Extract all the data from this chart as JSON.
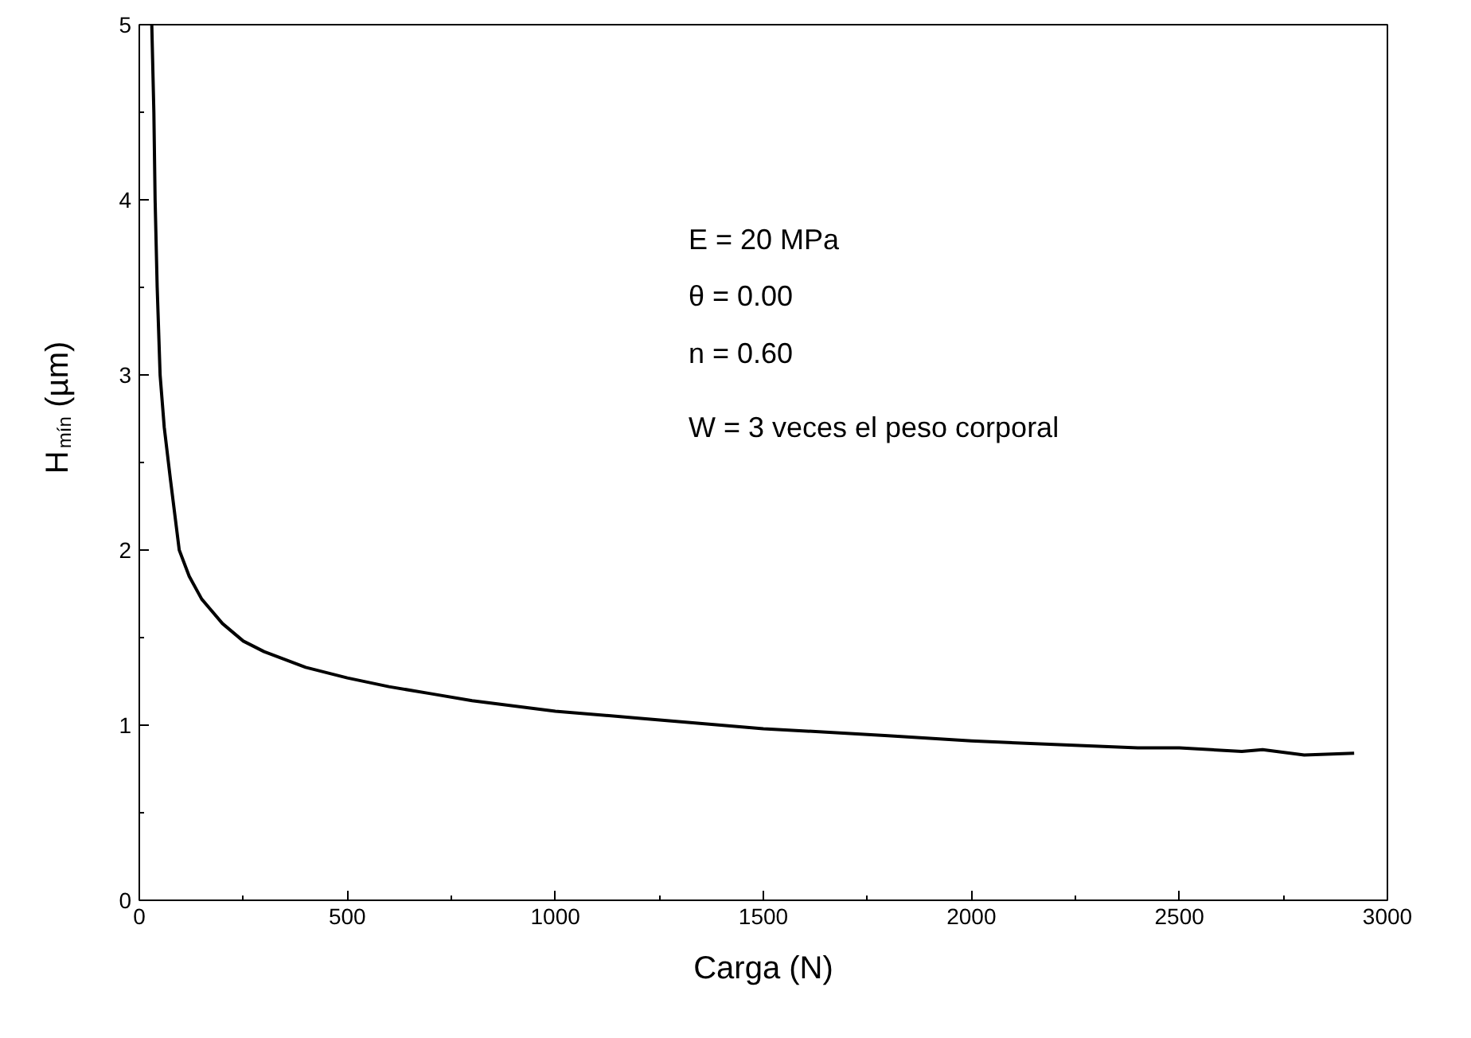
{
  "chart_data": {
    "type": "line",
    "xlabel": "Carga (N)",
    "ylabel": "H$_{mín}$ (µm)",
    "x": [
      30,
      35,
      38,
      43,
      50,
      60,
      75,
      96,
      120,
      150,
      200,
      250,
      300,
      400,
      500,
      600,
      700,
      800,
      1000,
      1200,
      1500,
      1800,
      2000,
      2200,
      2400,
      2500,
      2650,
      2700,
      2800,
      2920
    ],
    "series": [
      {
        "color": "#000000",
        "values": [
          5.0,
          4.5,
          4.0,
          3.5,
          3.0,
          2.7,
          2.4,
          2.0,
          1.85,
          1.72,
          1.58,
          1.48,
          1.42,
          1.33,
          1.27,
          1.22,
          1.18,
          1.14,
          1.08,
          1.04,
          0.98,
          0.94,
          0.91,
          0.89,
          0.87,
          0.87,
          0.85,
          0.86,
          0.83,
          0.84
        ]
      }
    ],
    "xlim": [
      0,
      3000
    ],
    "ylim": [
      0,
      5
    ],
    "xticks": [
      0,
      500,
      1000,
      1500,
      2000,
      2500,
      3000
    ],
    "yticks": [
      0,
      1,
      2,
      3,
      4,
      5
    ],
    "annotations": [
      "E = 20 MPa",
      "θ = 0.00",
      "n = 0.60",
      "W = 3 veces el peso corporal"
    ],
    "grid": false,
    "line_style": "solid",
    "marker": "none"
  }
}
